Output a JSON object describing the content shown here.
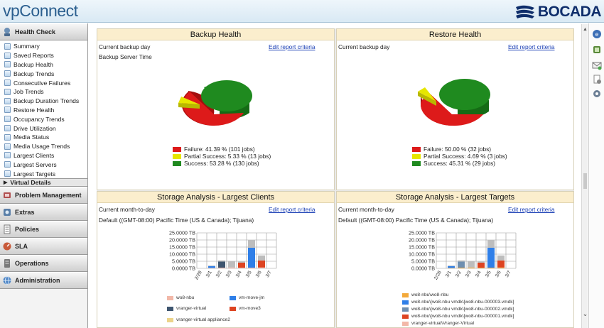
{
  "app": {
    "title": "vpConnect",
    "brand": "BOCADA"
  },
  "sidebar": {
    "health_check": "Health Check",
    "items": [
      {
        "label": "Summary"
      },
      {
        "label": "Saved Reports"
      },
      {
        "label": "Backup Health"
      },
      {
        "label": "Backup Trends"
      },
      {
        "label": "Consecutive Failures"
      },
      {
        "label": "Job Trends"
      },
      {
        "label": "Backup Duration Trends"
      },
      {
        "label": "Restore Health"
      },
      {
        "label": "Occupancy Trends"
      },
      {
        "label": "Drive Utilization"
      },
      {
        "label": "Media Status"
      },
      {
        "label": "Media Usage Trends"
      },
      {
        "label": "Largest Clients"
      },
      {
        "label": "Largest Servers"
      },
      {
        "label": "Largest Targets"
      }
    ],
    "virtual_details": "Virtual Details",
    "sections": [
      {
        "label": "Problem Management"
      },
      {
        "label": "Extras"
      },
      {
        "label": "Policies"
      },
      {
        "label": "SLA"
      },
      {
        "label": "Operations"
      },
      {
        "label": "Administration"
      }
    ]
  },
  "colors": {
    "failure": "#dd1a1a",
    "partial": "#e6e600",
    "success": "#1f8a1f",
    "panel_header": "#fbeecd"
  },
  "panels": {
    "backup_health": {
      "title": "Backup Health",
      "line1": "Current backup day",
      "line2": "Backup Server Time",
      "edit": "Edit report criteria",
      "legend": [
        "Failure: 41.39 % (101 jobs)",
        "Partial Success: 5.33 % (13 jobs)",
        "Success: 53.28 % (130 jobs)"
      ]
    },
    "restore_health": {
      "title": "Restore Health",
      "line1": "Current backup day",
      "edit": "Edit report criteria",
      "legend": [
        "Failure: 50.00 % (32 jobs)",
        "Partial Success: 4.69 % (3 jobs)",
        "Success: 45.31 % (29 jobs)"
      ]
    },
    "largest_clients": {
      "title": "Storage Analysis - Largest Clients",
      "line1": "Current month-to-day",
      "line2": "Default ((GMT-08:00) Pacific Time (US & Canada); Tijuana)",
      "edit": "Edit report criteria",
      "legend": [
        "wo8-nbu",
        "vm-move-jm",
        "vranger-virtual",
        "vm-move3",
        "vranger-virtual appliance2"
      ]
    },
    "largest_targets": {
      "title": "Storage Analysis - Largest Targets",
      "line1": "Current month-to-day",
      "line2": "Default ((GMT-08:00) Pacific Time (US & Canada); Tijuana)",
      "edit": "Edit report criteria",
      "legend": [
        "wo8-nbu\\wo8-nbu",
        "wo8-nbu\\[wo8-nbu vmdk\\[wo8-nbu-000003.vmdk]",
        "wo8-nbu\\[wo8-nbu vmdk\\[wo8-nbu-000002.vmdk]",
        "wo8-nbu\\[wo8-nbu vmdk\\[wo8-nbu-000001.vmdk]",
        "vranger-virtual\\Vranger-Virtual"
      ]
    }
  },
  "chart_data": [
    {
      "type": "pie",
      "title": "Backup Health",
      "labels": [
        "Failure",
        "Partial Success",
        "Success"
      ],
      "values": [
        41.39,
        5.33,
        53.28
      ],
      "counts": [
        101,
        13,
        130
      ],
      "colors": [
        "#dd1a1a",
        "#e6e600",
        "#1f8a1f"
      ]
    },
    {
      "type": "pie",
      "title": "Restore Health",
      "labels": [
        "Failure",
        "Partial Success",
        "Success"
      ],
      "values": [
        50.0,
        4.69,
        45.31
      ],
      "counts": [
        32,
        3,
        29
      ],
      "colors": [
        "#dd1a1a",
        "#e6e600",
        "#1f8a1f"
      ]
    },
    {
      "type": "bar",
      "stacked": true,
      "title": "Storage Analysis - Largest Clients",
      "categories": [
        "2/28",
        "3/1",
        "3/2",
        "3/3",
        "3/4",
        "3/5",
        "3/6",
        "3/7"
      ],
      "yticks": [
        "25.0000 TB",
        "20.0000 TB",
        "15.0000 TB",
        "10.0000 TB",
        "5.0000 TB",
        "0.0000 TB"
      ],
      "ylim": [
        0,
        25
      ],
      "series": [
        {
          "name": "wo8-nbu",
          "color": "#f2b8a8",
          "values": [
            0,
            0.3,
            0.5,
            0.6,
            0.5,
            0.5,
            0.6,
            0
          ]
        },
        {
          "name": "vm-move-jm",
          "color": "#2f7fe8",
          "values": [
            0,
            1.3,
            0,
            0,
            0,
            14,
            0,
            0
          ]
        },
        {
          "name": "vranger-virtual",
          "color": "#3f5670",
          "values": [
            0,
            0,
            4.3,
            0,
            0,
            0,
            0,
            0
          ]
        },
        {
          "name": "vm-move3",
          "color": "#dd4422",
          "values": [
            0,
            0,
            0,
            0,
            3.5,
            0,
            5,
            0
          ]
        },
        {
          "name": "vranger-virtual appliance2",
          "color": "#bdbdbd",
          "values": [
            0,
            0.4,
            0.8,
            4.5,
            0.8,
            5.5,
            3.5,
            0
          ]
        }
      ]
    },
    {
      "type": "bar",
      "stacked": true,
      "title": "Storage Analysis - Largest Targets",
      "categories": [
        "2/28",
        "3/1",
        "3/2",
        "3/3",
        "3/4",
        "3/5",
        "3/6",
        "3/7"
      ],
      "yticks": [
        "25.0000 TB",
        "20.0000 TB",
        "15.0000 TB",
        "10.0000 TB",
        "5.0000 TB",
        "0.0000 TB"
      ],
      "ylim": [
        0,
        25
      ],
      "series": [
        {
          "name": "wo8-nbu\\wo8-nbu",
          "color": "#f3a93a",
          "values": [
            0,
            0.3,
            0.5,
            0.6,
            0.5,
            0.5,
            0.6,
            0
          ]
        },
        {
          "name": "wo8-nbu\\[wo8-nbu vmdk\\[wo8-nbu-000003.vmdk]",
          "color": "#2f7fe8",
          "values": [
            0,
            1.3,
            0,
            0,
            0,
            14,
            0,
            0
          ]
        },
        {
          "name": "wo8-nbu\\[wo8-nbu vmdk\\[wo8-nbu-000002.vmdk]",
          "color": "#6f8fb0",
          "values": [
            0,
            0,
            4.3,
            0,
            0,
            0,
            0,
            0
          ]
        },
        {
          "name": "wo8-nbu\\[wo8-nbu vmdk\\[wo8-nbu-000001.vmdk]",
          "color": "#dd4422",
          "values": [
            0,
            0,
            0,
            0,
            3.5,
            0,
            5,
            0
          ]
        },
        {
          "name": "vranger-virtual\\Vranger-Virtual",
          "color": "#bdbdbd",
          "values": [
            0,
            0.4,
            0.8,
            4.5,
            0.8,
            5.5,
            3.5,
            0
          ]
        }
      ]
    }
  ]
}
